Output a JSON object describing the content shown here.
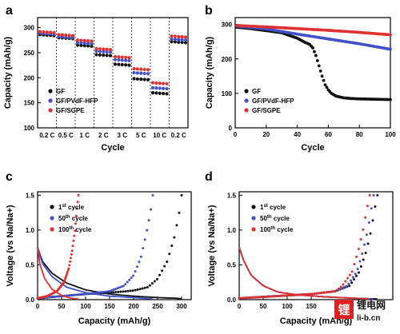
{
  "colors": {
    "GF": "#111111",
    "GF/PVdF-HFP": "#4050c8",
    "GF/SGPE": "#e03030",
    "watermark": "#e02020"
  },
  "chart_data": [
    {
      "panel": "a",
      "type": "scatter",
      "xlabel": "Cycle",
      "ylabel": "Capacity (mAh/g)",
      "ylim": [
        100,
        320
      ],
      "yticks": [
        100,
        150,
        200,
        250,
        300
      ],
      "categories": [
        "0.2 C",
        "0.5 C",
        "1 C",
        "2 C",
        "3 C",
        "5 C",
        "10 C",
        "0.2 C"
      ],
      "points_per_segment": 5,
      "legend": "lower-left",
      "series": [
        {
          "name": "GF",
          "values": [
            286,
            280,
            265,
            246,
            227,
            198,
            170,
            272
          ]
        },
        {
          "name": "GF/PVdF-HFP",
          "values": [
            289,
            282,
            270,
            253,
            236,
            210,
            180,
            277
          ]
        },
        {
          "name": "GF/SGPE",
          "values": [
            292,
            286,
            275,
            258,
            242,
            218,
            190,
            283
          ]
        }
      ]
    },
    {
      "panel": "b",
      "type": "scatter",
      "xlabel": "Cycle",
      "ylabel": "Capacity (mAh/g)",
      "xlim": [
        0,
        100
      ],
      "ylim": [
        0,
        320
      ],
      "xticks": [
        0,
        20,
        40,
        60,
        80,
        100
      ],
      "yticks": [
        0,
        100,
        200,
        300
      ],
      "legend": "lower-left",
      "series": [
        {
          "name": "GF",
          "x": [
            1,
            10,
            20,
            30,
            35,
            40,
            45,
            48,
            50,
            52,
            54,
            56,
            58,
            60,
            62,
            65,
            70,
            75,
            80,
            90,
            100
          ],
          "values": [
            292,
            288,
            282,
            276,
            268,
            260,
            248,
            242,
            232,
            210,
            180,
            150,
            125,
            110,
            100,
            92,
            87,
            85,
            84,
            83,
            82
          ]
        },
        {
          "name": "GF/PVdF-HFP",
          "x": [
            1,
            20,
            40,
            60,
            80,
            100
          ],
          "values": [
            295,
            287,
            272,
            258,
            244,
            228
          ]
        },
        {
          "name": "GF/SGPE",
          "x": [
            1,
            20,
            40,
            60,
            80,
            100
          ],
          "values": [
            297,
            293,
            288,
            283,
            277,
            270
          ]
        }
      ]
    },
    {
      "panel": "c",
      "type": "line",
      "xlabel": "Capacity (mAh/g)",
      "ylabel": "Voltage (vs Na/Na+)",
      "xlim": [
        0,
        320
      ],
      "ylim": [
        0,
        1.55
      ],
      "xticks": [
        0,
        50,
        100,
        150,
        200,
        250,
        300
      ],
      "yticks": [
        0.0,
        0.5,
        1.0,
        1.5
      ],
      "legend": "top-left",
      "series": [
        {
          "name": "1st cycle",
          "label_base": "1",
          "label_sup": "st",
          "label_rest": " cycle",
          "charge_x": [
            0,
            50,
            100,
            150,
            200,
            230,
            250,
            270,
            285,
            295,
            300
          ],
          "charge_y": [
            0.02,
            0.05,
            0.08,
            0.1,
            0.13,
            0.18,
            0.3,
            0.55,
            0.9,
            1.25,
            1.5
          ],
          "discharge_x": [
            0,
            10,
            30,
            60,
            100,
            150,
            200,
            250,
            290,
            300
          ],
          "discharge_y": [
            0.75,
            0.55,
            0.38,
            0.24,
            0.14,
            0.08,
            0.05,
            0.03,
            0.02,
            0.01
          ]
        },
        {
          "name": "50th cycle",
          "label_base": "50",
          "label_sup": "th",
          "label_rest": " cycle",
          "charge_x": [
            0,
            50,
            100,
            150,
            180,
            200,
            215,
            225,
            235,
            240
          ],
          "charge_y": [
            0.02,
            0.05,
            0.08,
            0.12,
            0.2,
            0.35,
            0.6,
            0.9,
            1.25,
            1.5
          ],
          "discharge_x": [
            0,
            10,
            30,
            60,
            100,
            150,
            200,
            240
          ],
          "discharge_y": [
            0.75,
            0.52,
            0.33,
            0.18,
            0.1,
            0.05,
            0.03,
            0.01
          ]
        },
        {
          "name": "100th cycle",
          "label_base": "100",
          "label_sup": "th",
          "label_rest": " cycle",
          "charge_x": [
            0,
            20,
            40,
            55,
            65,
            72,
            78,
            82,
            85
          ],
          "charge_y": [
            0.02,
            0.05,
            0.12,
            0.25,
            0.45,
            0.7,
            1.0,
            1.3,
            1.5
          ],
          "discharge_x": [
            0,
            5,
            15,
            30,
            50,
            70,
            85
          ],
          "discharge_y": [
            0.75,
            0.5,
            0.3,
            0.15,
            0.06,
            0.02,
            0.01
          ]
        }
      ]
    },
    {
      "panel": "d",
      "type": "line",
      "xlabel": "Capacity (mAh/g)",
      "ylabel": "Voltage (vs Na/Na+)",
      "xlim": [
        0,
        320
      ],
      "ylim": [
        0,
        1.55
      ],
      "xticks": [
        0,
        50,
        100,
        150
      ],
      "yticks": [
        0.0,
        0.5,
        1.0,
        1.5
      ],
      "legend": "top-left",
      "series": [
        {
          "name": "1st cycle",
          "label_base": "1",
          "label_sup": "st",
          "label_rest": " cycle",
          "charge_x": [
            0,
            50,
            100,
            150,
            200,
            230,
            250,
            265,
            275,
            282,
            288
          ],
          "charge_y": [
            0.02,
            0.04,
            0.06,
            0.08,
            0.12,
            0.2,
            0.4,
            0.7,
            1.0,
            1.3,
            1.5
          ],
          "discharge_x": [
            0,
            10,
            25,
            50,
            80,
            120,
            180,
            240,
            288
          ],
          "discharge_y": [
            0.75,
            0.55,
            0.35,
            0.2,
            0.11,
            0.07,
            0.04,
            0.02,
            0.01
          ]
        },
        {
          "name": "50th cycle",
          "label_base": "50",
          "label_sup": "th",
          "label_rest": " cycle",
          "charge_x": [
            0,
            50,
            100,
            150,
            200,
            225,
            245,
            258,
            268,
            275,
            280
          ],
          "charge_y": [
            0.02,
            0.04,
            0.06,
            0.08,
            0.12,
            0.2,
            0.4,
            0.7,
            1.0,
            1.3,
            1.5
          ],
          "discharge_x": [
            0,
            10,
            25,
            50,
            80,
            120,
            180,
            240,
            280
          ],
          "discharge_y": [
            0.75,
            0.55,
            0.35,
            0.2,
            0.11,
            0.07,
            0.04,
            0.02,
            0.01
          ]
        },
        {
          "name": "100th cycle",
          "label_base": "100",
          "label_sup": "th",
          "label_rest": " cycle",
          "charge_x": [
            0,
            50,
            100,
            150,
            200,
            215,
            235,
            248,
            258,
            266,
            272
          ],
          "charge_y": [
            0.02,
            0.04,
            0.06,
            0.08,
            0.12,
            0.2,
            0.4,
            0.7,
            1.0,
            1.3,
            1.5
          ],
          "discharge_x": [
            0,
            10,
            25,
            50,
            80,
            120,
            180,
            240,
            272
          ],
          "discharge_y": [
            0.75,
            0.55,
            0.35,
            0.2,
            0.11,
            0.07,
            0.04,
            0.02,
            0.01
          ]
        }
      ]
    }
  ],
  "watermark": {
    "logo_char": "锂",
    "title": "锂电网",
    "url": "li-b.cn"
  }
}
